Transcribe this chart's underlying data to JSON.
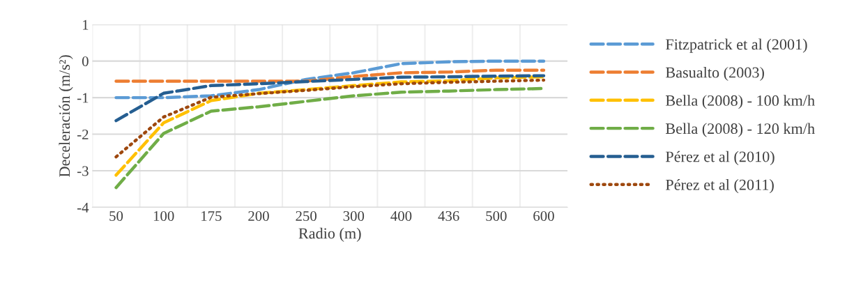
{
  "chart_data": {
    "type": "line",
    "xlabel": "Radio (m)",
    "ylabel": "Deceleración (m/s²)",
    "categories": [
      "50",
      "100",
      "175",
      "200",
      "250",
      "300",
      "400",
      "436",
      "500",
      "600"
    ],
    "series": [
      {
        "name": "Fitzpatrick et al (2001)",
        "color": "#5b9bd5",
        "line_style": "dashed",
        "values": [
          -1.0,
          -1.0,
          -0.95,
          -0.78,
          -0.5,
          -0.32,
          -0.07,
          -0.02,
          0.0,
          0.0
        ]
      },
      {
        "name": "Basualto (2003)",
        "color": "#ed7d31",
        "line_style": "dashed",
        "values": [
          -0.55,
          -0.55,
          -0.55,
          -0.55,
          -0.55,
          -0.42,
          -0.32,
          -0.3,
          -0.25,
          -0.25
        ]
      },
      {
        "name": "Bella (2008) - 100 km/h",
        "color": "#ffc000",
        "line_style": "dashed",
        "values": [
          -3.12,
          -1.69,
          -1.08,
          -0.88,
          -0.78,
          -0.67,
          -0.57,
          -0.54,
          -0.46,
          -0.43
        ]
      },
      {
        "name": "Bella (2008) - 120 km/h",
        "color": "#70ad47",
        "line_style": "dashed",
        "values": [
          -3.46,
          -1.98,
          -1.37,
          -1.25,
          -1.1,
          -0.95,
          -0.85,
          -0.82,
          -0.78,
          -0.75
        ]
      },
      {
        "name": "Pérez et al (2010)",
        "color": "#255e91",
        "line_style": "dashed",
        "values": [
          -1.63,
          -0.88,
          -0.67,
          -0.62,
          -0.56,
          -0.5,
          -0.44,
          -0.43,
          -0.41,
          -0.4
        ]
      },
      {
        "name": "Pérez et al (2011)",
        "color": "#9e480e",
        "line_style": "dotted",
        "values": [
          -2.62,
          -1.53,
          -0.99,
          -0.89,
          -0.8,
          -0.7,
          -0.62,
          -0.58,
          -0.55,
          -0.52
        ]
      }
    ],
    "ylim": [
      -4,
      1
    ],
    "yticks": [
      -4,
      -3,
      -2,
      -1,
      0,
      1
    ],
    "grid": true,
    "legend": "right"
  }
}
